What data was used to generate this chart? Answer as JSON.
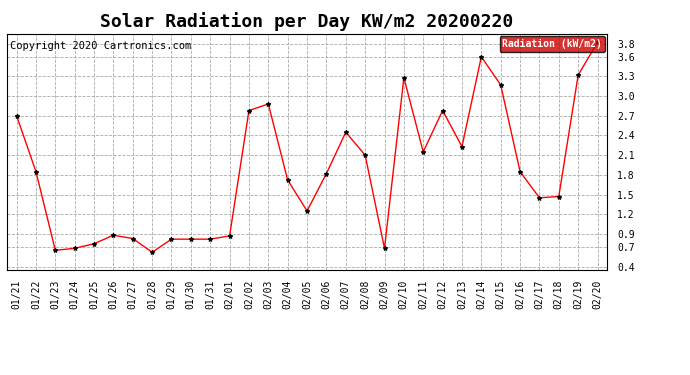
{
  "title": "Solar Radiation per Day KW/m2 20200220",
  "copyright_text": "Copyright 2020 Cartronics.com",
  "legend_label": "Radiation (kW/m2)",
  "dates": [
    "01/21",
    "01/22",
    "01/23",
    "01/24",
    "01/25",
    "01/26",
    "01/27",
    "01/28",
    "01/29",
    "01/30",
    "01/31",
    "02/01",
    "02/02",
    "02/03",
    "02/04",
    "02/05",
    "02/06",
    "02/07",
    "02/08",
    "02/09",
    "02/10",
    "02/11",
    "02/12",
    "02/13",
    "02/14",
    "02/15",
    "02/16",
    "02/17",
    "02/18",
    "02/19",
    "02/20"
  ],
  "values": [
    2.7,
    1.85,
    0.65,
    0.68,
    0.75,
    0.88,
    0.83,
    0.62,
    0.82,
    0.82,
    0.82,
    0.87,
    2.78,
    2.88,
    1.72,
    1.25,
    1.82,
    2.45,
    2.1,
    0.68,
    3.28,
    2.15,
    2.78,
    2.23,
    3.6,
    3.17,
    1.85,
    1.45,
    1.47,
    3.32,
    3.82
  ],
  "ylim": [
    0.35,
    3.95
  ],
  "yticks": [
    0.4,
    0.7,
    0.9,
    1.2,
    1.5,
    1.8,
    2.1,
    2.4,
    2.7,
    3.0,
    3.3,
    3.6,
    3.8
  ],
  "line_color": "red",
  "marker_color": "black",
  "bg_color": "white",
  "grid_color": "#aaaaaa",
  "title_fontsize": 13,
  "copyright_fontsize": 7.5,
  "tick_fontsize": 7,
  "legend_bg": "#cc0000",
  "legend_text_color": "white"
}
